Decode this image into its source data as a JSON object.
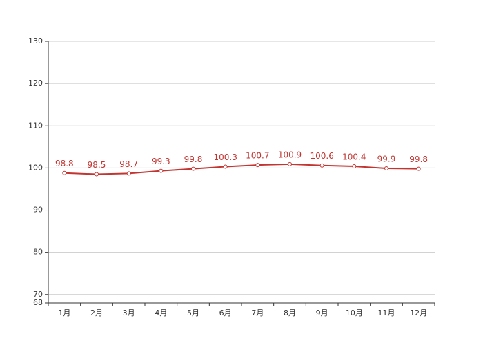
{
  "chart_data": {
    "type": "line",
    "categories": [
      "1月",
      "2月",
      "3月",
      "4月",
      "5月",
      "6月",
      "7月",
      "8月",
      "9月",
      "10月",
      "11月",
      "12月"
    ],
    "values": [
      98.8,
      98.5,
      98.7,
      99.3,
      99.8,
      100.3,
      100.7,
      100.9,
      100.6,
      100.4,
      99.9,
      99.8
    ],
    "color": "#c23531",
    "ylim": [
      68,
      130
    ],
    "yticks": [
      68,
      70,
      80,
      90,
      100,
      110,
      120,
      130
    ],
    "grid": true
  }
}
